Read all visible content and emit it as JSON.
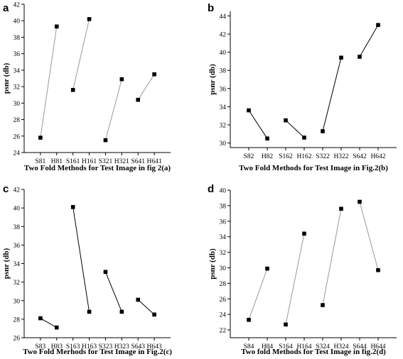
{
  "chart_data": [
    {
      "panel": "a",
      "type": "line",
      "xlabel": "Two Fold Methods for Test Image in fig 2(a)",
      "ylabel": "psnr (db)",
      "categories": [
        "S81",
        "H81",
        "S161",
        "H161",
        "S321",
        "H321",
        "S641",
        "H641"
      ],
      "ylim": [
        24,
        42
      ],
      "yticks": [
        24,
        26,
        28,
        30,
        32,
        34,
        36,
        38,
        40,
        42
      ],
      "line_color": "#999999",
      "series": [
        {
          "values": [
            25.8,
            39.3,
            null,
            null,
            null,
            null,
            null,
            null
          ]
        },
        {
          "values": [
            null,
            null,
            31.6,
            40.2,
            null,
            null,
            null,
            null
          ]
        },
        {
          "values": [
            null,
            null,
            null,
            null,
            25.5,
            32.9,
            null,
            null
          ]
        },
        {
          "values": [
            null,
            null,
            null,
            null,
            null,
            null,
            30.4,
            33.5
          ]
        }
      ]
    },
    {
      "panel": "b",
      "type": "line",
      "xlabel": "Two Fold Methods for Test Image in Fig.2(b)",
      "ylabel": "psnr (db)",
      "categories": [
        "S82",
        "H82",
        "S162",
        "H162",
        "S322",
        "H322",
        "S642",
        "H642"
      ],
      "ylim": [
        29.5,
        44.5
      ],
      "yticks": [
        30,
        32,
        34,
        36,
        38,
        40,
        42,
        44
      ],
      "line_color": "#000000",
      "series": [
        {
          "values": [
            33.6,
            30.5,
            null,
            null,
            null,
            null,
            null,
            null
          ]
        },
        {
          "values": [
            null,
            null,
            32.5,
            30.6,
            null,
            null,
            null,
            null
          ]
        },
        {
          "values": [
            null,
            null,
            null,
            null,
            31.3,
            39.4,
            null,
            null
          ]
        },
        {
          "values": [
            null,
            null,
            null,
            null,
            null,
            null,
            39.5,
            43.0
          ]
        }
      ]
    },
    {
      "panel": "c",
      "type": "line",
      "xlabel": "Two Fold Merhods for Test Image in Fig.2(c)",
      "ylabel": "psnr (db)",
      "categories": [
        "S83",
        "H83",
        "S163",
        "H163",
        "S323",
        "H323",
        "S643",
        "H643"
      ],
      "ylim": [
        26,
        42
      ],
      "yticks": [
        26,
        28,
        30,
        32,
        34,
        36,
        38,
        40,
        42
      ],
      "line_color": "#000000",
      "series": [
        {
          "values": [
            28.1,
            27.1,
            null,
            null,
            null,
            null,
            null,
            null
          ]
        },
        {
          "values": [
            null,
            null,
            40.1,
            28.8,
            null,
            null,
            null,
            null
          ]
        },
        {
          "values": [
            null,
            null,
            null,
            null,
            33.1,
            28.8,
            null,
            null
          ]
        },
        {
          "values": [
            null,
            null,
            null,
            null,
            null,
            null,
            30.1,
            28.5
          ]
        }
      ]
    },
    {
      "panel": "d",
      "type": "line",
      "xlabel": "Two fold Methods for Test Image in fig.2(d)",
      "ylabel": "psnr (db)",
      "categories": [
        "S84",
        "H84",
        "S164",
        "H164",
        "S324",
        "H324",
        "S644",
        "H644"
      ],
      "ylim": [
        21,
        40
      ],
      "yticks": [
        22,
        24,
        26,
        28,
        30,
        32,
        34,
        36,
        38,
        40
      ],
      "line_color": "#999999",
      "series": [
        {
          "values": [
            23.3,
            29.9,
            null,
            null,
            null,
            null,
            null,
            null
          ]
        },
        {
          "values": [
            null,
            null,
            22.7,
            34.4,
            null,
            null,
            null,
            null
          ]
        },
        {
          "values": [
            null,
            null,
            null,
            null,
            25.2,
            37.6,
            null,
            null
          ]
        },
        {
          "values": [
            null,
            null,
            null,
            null,
            null,
            null,
            38.5,
            29.7
          ]
        }
      ]
    }
  ]
}
